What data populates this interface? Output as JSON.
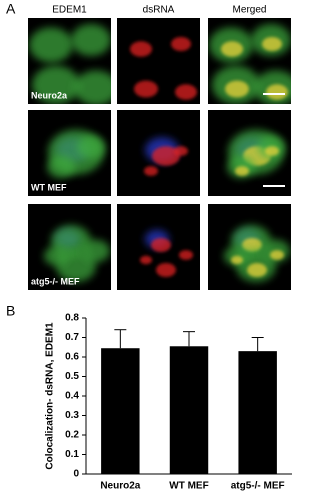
{
  "figure": {
    "panel_a_label": "A",
    "panel_b_label": "B",
    "columns": [
      "EDEM1",
      "dsRNA",
      "Merged"
    ],
    "rows": [
      "Neuro2a",
      "WT MEF",
      "atg5-/- MEF"
    ]
  },
  "chart_data": {
    "type": "bar",
    "y_label": "Colocalization- dsRNA, EDEM1",
    "categories": [
      "Neuro2a",
      "WT MEF",
      "atg5-/- MEF"
    ],
    "values": [
      0.645,
      0.655,
      0.63
    ],
    "errors": [
      0.095,
      0.075,
      0.07
    ],
    "color": "#000000",
    "ylim": [
      0,
      0.8
    ],
    "yticks": [
      0,
      0.1,
      0.2,
      0.3,
      0.4,
      0.5,
      0.6,
      0.7,
      0.8
    ]
  }
}
